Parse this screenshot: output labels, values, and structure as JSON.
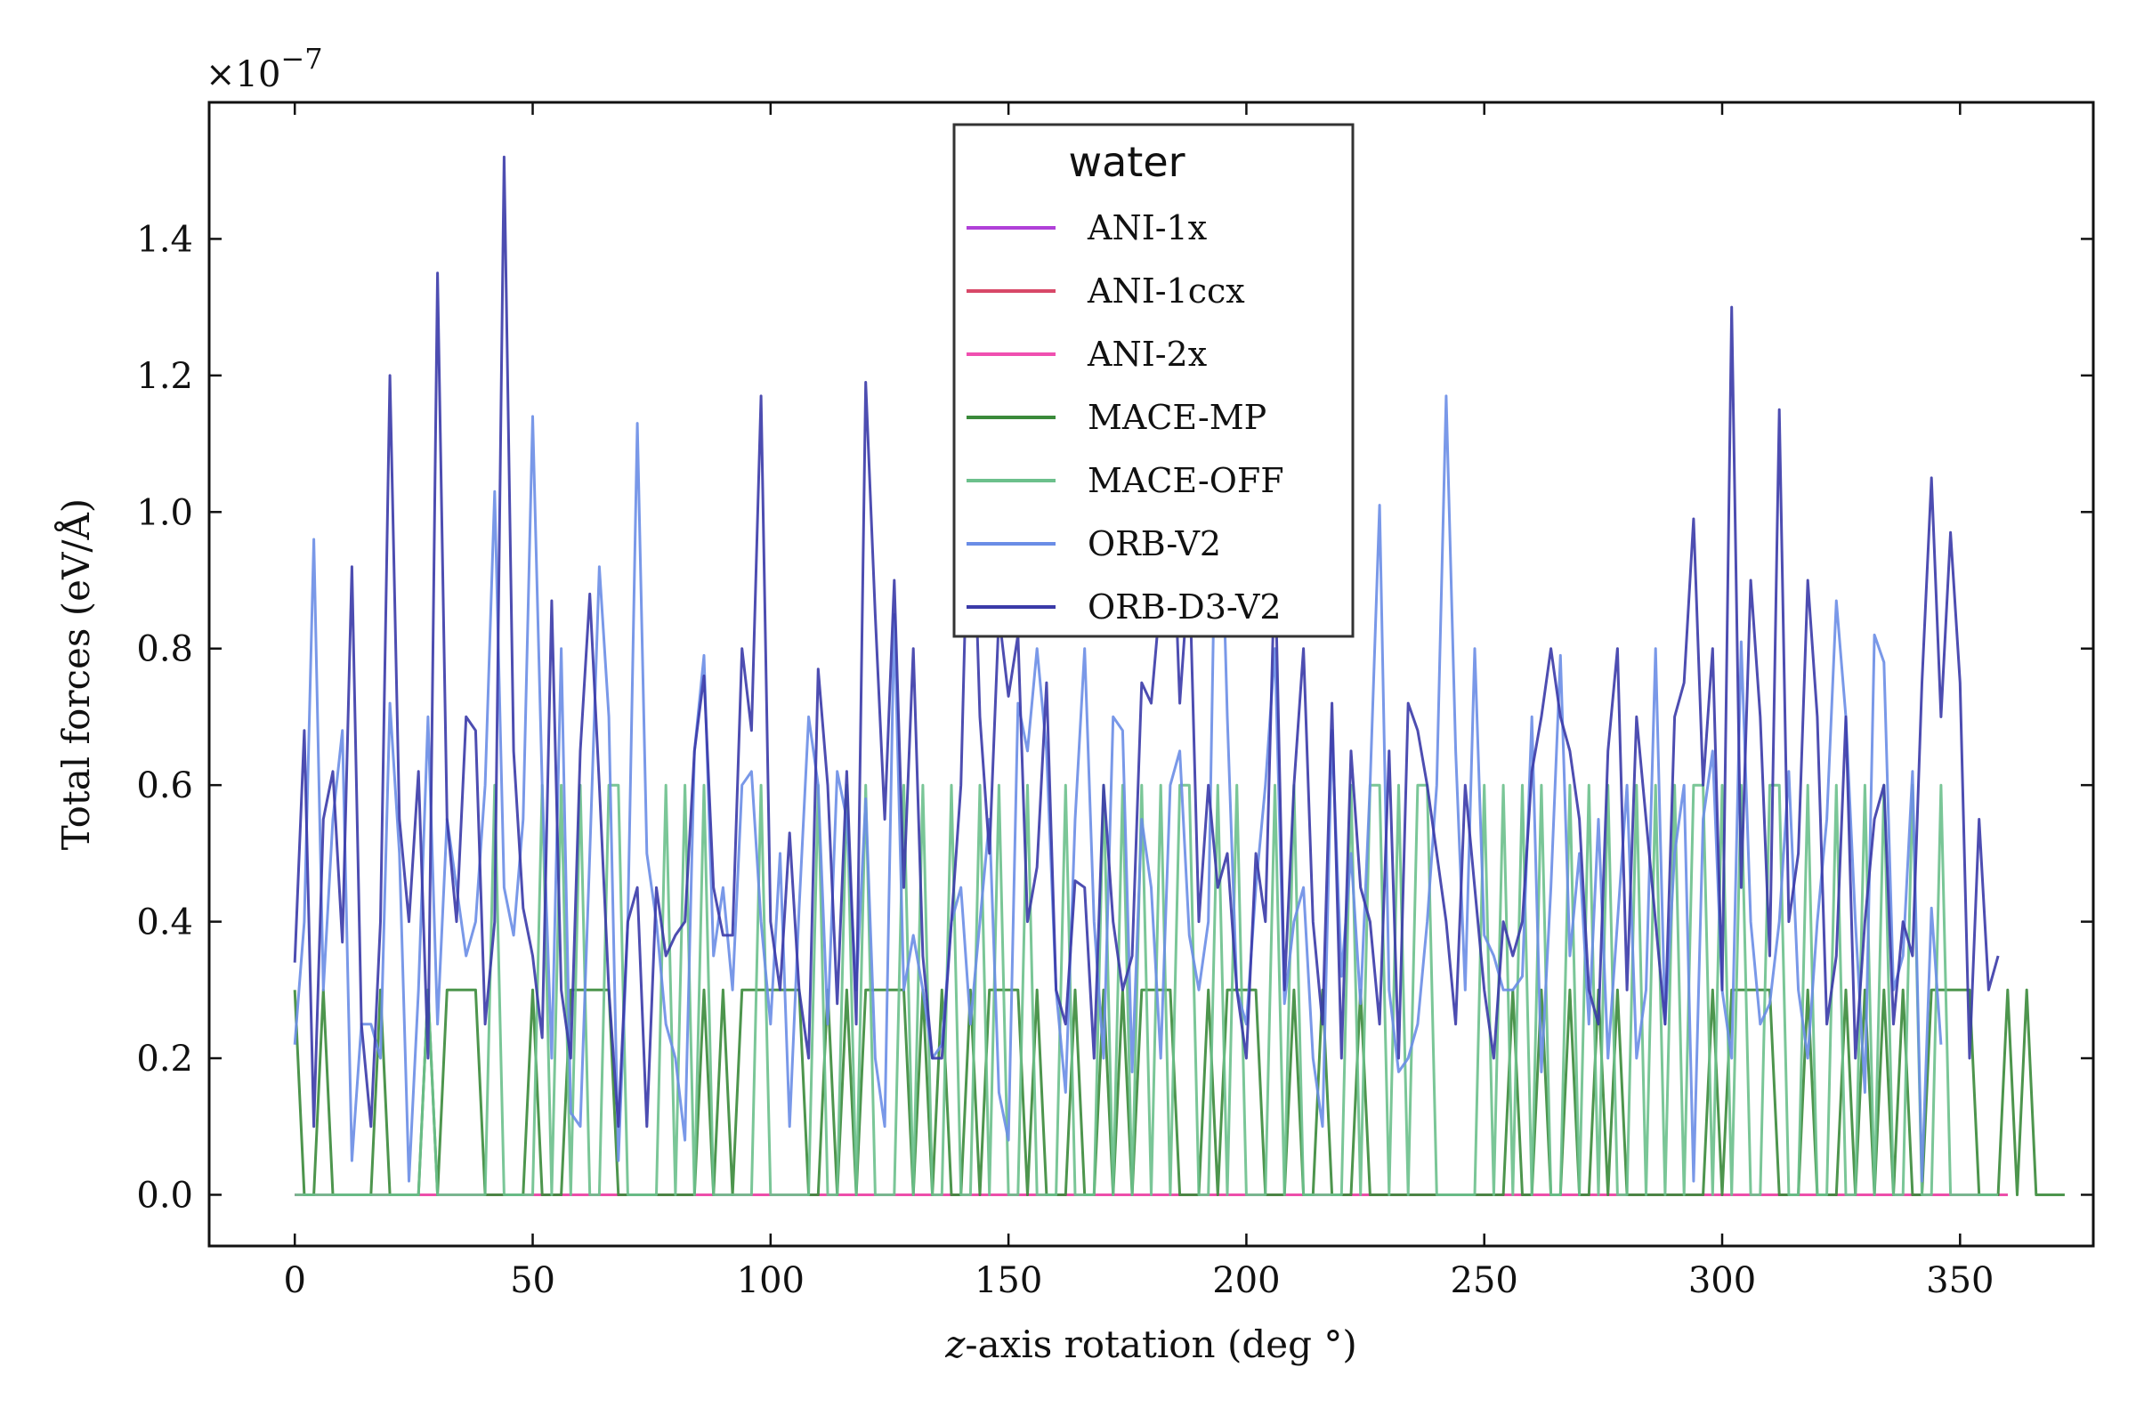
{
  "chart_data": {
    "type": "line",
    "xlabel_italic": "z",
    "xlabel_rest": "-axis rotation (deg °)",
    "ylabel": "Total forces   (eV/Å)",
    "y_multiplier": "×10",
    "y_multiplier_exp": "−7",
    "xlim": [
      -18,
      378
    ],
    "ylim": [
      -0.075,
      1.6
    ],
    "x_ticks": [
      0,
      50,
      100,
      150,
      200,
      250,
      300,
      350
    ],
    "x_tick_labels": [
      "0",
      "50",
      "100",
      "150",
      "200",
      "250",
      "300",
      "350"
    ],
    "y_ticks": [
      0.0,
      0.2,
      0.4,
      0.6,
      0.8,
      1.0,
      1.2,
      1.4
    ],
    "y_tick_labels": [
      "0.0",
      "0.2",
      "0.4",
      "0.6",
      "0.8",
      "1.0",
      "1.2",
      "1.4"
    ],
    "legend": {
      "title": "water",
      "placement": "top-center"
    },
    "x_start": 0,
    "x_step": 2,
    "series": [
      {
        "name": "ANI-1x",
        "color": "#b040d8",
        "values": [
          0,
          0,
          0,
          0,
          0,
          0,
          0,
          0,
          0,
          0,
          0,
          0,
          0,
          0,
          0,
          0,
          0,
          0,
          0,
          0,
          0,
          0,
          0,
          0,
          0,
          0,
          0,
          0,
          0,
          0,
          0,
          0,
          0,
          0,
          0,
          0,
          0,
          0,
          0,
          0,
          0,
          0,
          0,
          0,
          0,
          0,
          0,
          0,
          0,
          0,
          0,
          0,
          0,
          0,
          0,
          0,
          0,
          0,
          0,
          0,
          0,
          0,
          0,
          0,
          0,
          0,
          0,
          0,
          0,
          0,
          0,
          0,
          0,
          0,
          0,
          0,
          0,
          0,
          0,
          0,
          0,
          0,
          0,
          0,
          0,
          0,
          0,
          0,
          0,
          0,
          0,
          0,
          0,
          0,
          0,
          0,
          0,
          0,
          0,
          0,
          0,
          0,
          0,
          0,
          0,
          0,
          0,
          0,
          0,
          0,
          0,
          0,
          0,
          0,
          0,
          0,
          0,
          0,
          0,
          0,
          0,
          0,
          0,
          0,
          0,
          0,
          0,
          0,
          0,
          0,
          0,
          0,
          0,
          0,
          0,
          0,
          0,
          0,
          0,
          0,
          0,
          0,
          0,
          0,
          0,
          0,
          0,
          0,
          0,
          0,
          0,
          0,
          0,
          0,
          0,
          0,
          0,
          0,
          0,
          0,
          0,
          0,
          0,
          0,
          0,
          0,
          0,
          0,
          0,
          0,
          0,
          0,
          0,
          0,
          0,
          0,
          0,
          0,
          0,
          0,
          0
        ]
      },
      {
        "name": "ANI-1ccx",
        "color": "#d84868",
        "values": [
          0,
          0,
          0,
          0,
          0,
          0,
          0,
          0,
          0,
          0,
          0,
          0,
          0,
          0,
          0,
          0,
          0,
          0,
          0,
          0,
          0,
          0,
          0,
          0,
          0,
          0,
          0,
          0,
          0,
          0,
          0,
          0,
          0,
          0,
          0,
          0,
          0,
          0,
          0,
          0,
          0,
          0,
          0,
          0,
          0,
          0,
          0,
          0,
          0,
          0,
          0,
          0,
          0,
          0,
          0,
          0,
          0,
          0,
          0,
          0,
          0,
          0,
          0,
          0,
          0,
          0,
          0,
          0,
          0,
          0,
          0,
          0,
          0,
          0,
          0,
          0,
          0,
          0,
          0,
          0,
          0,
          0,
          0,
          0,
          0,
          0,
          0,
          0,
          0,
          0,
          0,
          0,
          0,
          0,
          0,
          0,
          0,
          0,
          0,
          0,
          0,
          0,
          0,
          0,
          0,
          0,
          0,
          0,
          0,
          0,
          0,
          0,
          0,
          0,
          0,
          0,
          0,
          0,
          0,
          0,
          0,
          0,
          0,
          0,
          0,
          0,
          0,
          0,
          0,
          0,
          0,
          0,
          0,
          0,
          0,
          0,
          0,
          0,
          0,
          0,
          0,
          0,
          0,
          0,
          0,
          0,
          0,
          0,
          0,
          0,
          0,
          0,
          0,
          0,
          0,
          0,
          0,
          0,
          0,
          0,
          0,
          0,
          0,
          0,
          0,
          0,
          0,
          0,
          0,
          0,
          0,
          0,
          0,
          0,
          0,
          0,
          0,
          0,
          0,
          0,
          0
        ]
      },
      {
        "name": "ANI-2x",
        "color": "#f050b0",
        "values": [
          0,
          0,
          0,
          0,
          0,
          0,
          0,
          0,
          0,
          0,
          0,
          0,
          0,
          0,
          0,
          0,
          0,
          0,
          0,
          0,
          0,
          0,
          0,
          0,
          0,
          0,
          0,
          0,
          0,
          0,
          0,
          0,
          0,
          0,
          0,
          0,
          0,
          0,
          0,
          0,
          0,
          0,
          0,
          0,
          0,
          0,
          0,
          0,
          0,
          0,
          0,
          0,
          0,
          0,
          0,
          0,
          0,
          0,
          0,
          0,
          0,
          0,
          0,
          0,
          0,
          0,
          0,
          0,
          0,
          0,
          0,
          0,
          0,
          0,
          0,
          0,
          0,
          0,
          0,
          0,
          0,
          0,
          0,
          0,
          0,
          0,
          0,
          0,
          0,
          0,
          0,
          0,
          0,
          0,
          0,
          0,
          0,
          0,
          0,
          0,
          0,
          0,
          0,
          0,
          0,
          0,
          0,
          0,
          0,
          0,
          0,
          0,
          0,
          0,
          0,
          0,
          0,
          0,
          0,
          0,
          0,
          0,
          0,
          0,
          0,
          0,
          0,
          0,
          0,
          0,
          0,
          0,
          0,
          0,
          0,
          0,
          0,
          0,
          0,
          0,
          0,
          0,
          0,
          0,
          0,
          0,
          0,
          0,
          0,
          0,
          0,
          0,
          0,
          0,
          0,
          0,
          0,
          0,
          0,
          0,
          0,
          0,
          0,
          0,
          0,
          0,
          0,
          0,
          0,
          0,
          0,
          0,
          0,
          0,
          0,
          0,
          0,
          0,
          0,
          0,
          0
        ]
      },
      {
        "name": "MACE-MP",
        "color": "#3a8a3a",
        "values": [
          0.3,
          0,
          0,
          0.3,
          0,
          0,
          0,
          0,
          0,
          0.3,
          0,
          0,
          0,
          0,
          0.3,
          0,
          0.3,
          0.3,
          0.3,
          0.3,
          0,
          0,
          0,
          0,
          0,
          0.3,
          0,
          0,
          0,
          0.3,
          0.3,
          0.3,
          0.3,
          0.3,
          0,
          0,
          0,
          0,
          0,
          0,
          0,
          0,
          0,
          0.3,
          0,
          0.3,
          0,
          0.3,
          0.3,
          0.3,
          0.3,
          0.3,
          0.3,
          0.3,
          0,
          0,
          0.3,
          0,
          0.3,
          0,
          0.3,
          0.3,
          0.3,
          0.3,
          0.3,
          0,
          0.3,
          0,
          0.3,
          0,
          0,
          0.3,
          0,
          0.3,
          0.3,
          0.3,
          0.3,
          0,
          0.3,
          0,
          0,
          0,
          0.3,
          0,
          0,
          0.3,
          0,
          0.3,
          0,
          0.3,
          0.3,
          0.3,
          0.3,
          0,
          0,
          0,
          0.3,
          0,
          0.3,
          0.3,
          0.3,
          0.3,
          0,
          0,
          0,
          0.3,
          0,
          0,
          0.3,
          0,
          0,
          0,
          0.3,
          0,
          0,
          0,
          0,
          0,
          0,
          0,
          0,
          0,
          0,
          0,
          0,
          0,
          0,
          0,
          0.3,
          0,
          0,
          0.3,
          0,
          0,
          0.3,
          0,
          0,
          0.3,
          0,
          0.3,
          0,
          0,
          0,
          0,
          0,
          0,
          0,
          0,
          0,
          0.3,
          0,
          0.3,
          0.3,
          0.3,
          0.3,
          0.3,
          0,
          0,
          0,
          0.3,
          0,
          0,
          0,
          0.3,
          0,
          0.3,
          0,
          0.3,
          0,
          0.3,
          0,
          0,
          0.3,
          0.3,
          0.3,
          0.3,
          0.3,
          0,
          0,
          0,
          0.3,
          0,
          0.3,
          0,
          0,
          0,
          0
        ]
      },
      {
        "name": "MACE-OFF",
        "color": "#6cc08c",
        "values": [
          0,
          0,
          0,
          0,
          0,
          0,
          0,
          0,
          0,
          0,
          0,
          0,
          0,
          0,
          0.3,
          0,
          0,
          0,
          0,
          0,
          0,
          0.6,
          0,
          0,
          0,
          0,
          0.6,
          0,
          0.6,
          0,
          0.6,
          0,
          0,
          0.6,
          0.6,
          0,
          0,
          0,
          0,
          0.6,
          0,
          0.6,
          0,
          0.6,
          0,
          0,
          0,
          0,
          0,
          0.6,
          0,
          0,
          0,
          0,
          0,
          0.6,
          0,
          0,
          0.6,
          0,
          0.6,
          0,
          0,
          0,
          0.6,
          0,
          0.6,
          0,
          0,
          0.6,
          0,
          0,
          0.6,
          0,
          0.6,
          0,
          0,
          0.6,
          0,
          0,
          0,
          0.6,
          0,
          0,
          0,
          0.6,
          0,
          0.6,
          0,
          0.6,
          0,
          0.6,
          0,
          0.6,
          0.6,
          0,
          0,
          0.6,
          0,
          0.6,
          0,
          0,
          0,
          0.6,
          0,
          0.6,
          0,
          0,
          0,
          0,
          0,
          0.6,
          0,
          0.6,
          0.6,
          0,
          0.6,
          0,
          0.6,
          0.6,
          0,
          0,
          0,
          0,
          0,
          0.6,
          0,
          0.6,
          0,
          0.6,
          0,
          0.6,
          0,
          0,
          0.6,
          0,
          0.6,
          0,
          0.6,
          0,
          0,
          0.6,
          0,
          0.6,
          0,
          0.6,
          0,
          0.6,
          0.6,
          0,
          0.6,
          0,
          0.6,
          0,
          0,
          0.6,
          0.6,
          0,
          0,
          0.6,
          0,
          0,
          0.6,
          0,
          0,
          0.6,
          0,
          0.6,
          0,
          0,
          0.6,
          0,
          0,
          0.6,
          0,
          0,
          0,
          0,
          0,
          0
        ]
      },
      {
        "name": "ORB-V2",
        "color": "#6a8de6",
        "values": [
          0.22,
          0.4,
          0.96,
          0.3,
          0.55,
          0.68,
          0.05,
          0.25,
          0.25,
          0.2,
          0.72,
          0.5,
          0.02,
          0.3,
          0.7,
          0.25,
          0.55,
          0.45,
          0.35,
          0.4,
          0.6,
          1.03,
          0.45,
          0.38,
          0.55,
          1.14,
          0.6,
          0.2,
          0.8,
          0.12,
          0.1,
          0.5,
          0.92,
          0.7,
          0.05,
          0.4,
          1.13,
          0.5,
          0.4,
          0.25,
          0.2,
          0.08,
          0.65,
          0.79,
          0.35,
          0.45,
          0.3,
          0.6,
          0.62,
          0.4,
          0.25,
          0.5,
          0.1,
          0.42,
          0.7,
          0.6,
          0.25,
          0.62,
          0.55,
          0.3,
          0.58,
          0.2,
          0.1,
          0.85,
          0.3,
          0.38,
          0.3,
          0.2,
          0.22,
          0.4,
          0.45,
          0.25,
          0.4,
          0.55,
          0.15,
          0.08,
          0.72,
          0.65,
          0.8,
          0.65,
          0.3,
          0.15,
          0.55,
          0.8,
          0.4,
          0.2,
          0.7,
          0.68,
          0.18,
          0.55,
          0.45,
          0.2,
          0.6,
          0.65,
          0.38,
          0.3,
          0.4,
          1.2,
          0.7,
          0.3,
          0.25,
          0.45,
          0.6,
          0.8,
          0.28,
          0.4,
          0.45,
          0.2,
          0.1,
          0.68,
          0.32,
          0.5,
          0.28,
          0.6,
          1.01,
          0.3,
          0.18,
          0.2,
          0.25,
          0.4,
          0.6,
          1.17,
          0.65,
          0.3,
          0.8,
          0.38,
          0.35,
          0.3,
          0.3,
          0.32,
          0.7,
          0.18,
          0.45,
          0.79,
          0.35,
          0.5,
          0.25,
          0.55,
          0.2,
          0.4,
          0.6,
          0.2,
          0.3,
          0.8,
          0.25,
          0.5,
          0.6,
          0.02,
          0.55,
          0.65,
          0.3,
          0.2,
          0.81,
          0.4,
          0.25,
          0.28,
          0.4,
          0.62,
          0.3,
          0.2,
          0.4,
          0.55,
          0.87,
          0.7,
          0.4,
          0.15,
          0.82,
          0.78,
          0.3,
          0.35,
          0.62,
          0.02,
          0.42,
          0.22
        ]
      },
      {
        "name": "ORB-D3-V2",
        "color": "#3a3aa8",
        "values": [
          0.34,
          0.68,
          0.1,
          0.55,
          0.62,
          0.37,
          0.92,
          0.25,
          0.1,
          0.4,
          1.2,
          0.55,
          0.4,
          0.62,
          0.2,
          1.35,
          0.55,
          0.4,
          0.7,
          0.68,
          0.25,
          0.4,
          1.52,
          0.65,
          0.42,
          0.35,
          0.23,
          0.87,
          0.3,
          0.2,
          0.65,
          0.88,
          0.6,
          0.3,
          0.1,
          0.4,
          0.45,
          0.1,
          0.45,
          0.35,
          0.38,
          0.4,
          0.65,
          0.76,
          0.45,
          0.38,
          0.38,
          0.8,
          0.68,
          1.17,
          0.4,
          0.3,
          0.53,
          0.3,
          0.2,
          0.77,
          0.6,
          0.28,
          0.62,
          0.25,
          1.19,
          0.85,
          0.55,
          0.9,
          0.45,
          0.8,
          0.35,
          0.2,
          0.2,
          0.4,
          0.6,
          1.15,
          0.7,
          0.5,
          0.85,
          0.73,
          0.82,
          0.4,
          0.48,
          0.75,
          0.3,
          0.25,
          0.46,
          0.45,
          0.2,
          0.6,
          0.4,
          0.3,
          0.35,
          0.75,
          0.72,
          0.88,
          1.1,
          0.72,
          0.92,
          0.4,
          0.6,
          0.45,
          0.5,
          0.3,
          0.2,
          0.5,
          0.4,
          0.93,
          0.3,
          0.6,
          0.8,
          0.4,
          0.25,
          0.72,
          0.2,
          0.65,
          0.45,
          0.4,
          0.25,
          0.65,
          0.2,
          0.72,
          0.68,
          0.6,
          0.5,
          0.4,
          0.25,
          0.6,
          0.45,
          0.3,
          0.2,
          0.4,
          0.35,
          0.4,
          0.62,
          0.7,
          0.8,
          0.7,
          0.65,
          0.55,
          0.3,
          0.25,
          0.65,
          0.8,
          0.3,
          0.7,
          0.55,
          0.4,
          0.25,
          0.7,
          0.75,
          0.99,
          0.6,
          0.8,
          0.3,
          1.3,
          0.45,
          0.9,
          0.7,
          0.35,
          1.15,
          0.4,
          0.5,
          0.9,
          0.7,
          0.25,
          0.35,
          0.7,
          0.2,
          0.4,
          0.55,
          0.6,
          0.25,
          0.4,
          0.35,
          0.75,
          1.05,
          0.7,
          0.97,
          0.75,
          0.2,
          0.55,
          0.3,
          0.35
        ]
      }
    ]
  }
}
